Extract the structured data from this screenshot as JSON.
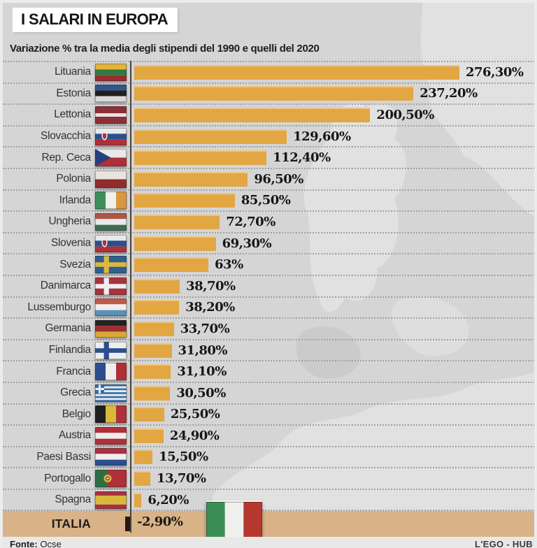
{
  "header": {
    "title": "I SALARI IN EUROPA",
    "subtitle": "Variazione % tra la media degli stipendi del 1990 e quelli del 2020"
  },
  "chart_data": {
    "type": "bar",
    "orientation": "horizontal",
    "unit": "%",
    "axis_min": 0,
    "max_value": 276.3,
    "grid": "dotted-row-separators",
    "categories": [
      "Lituania",
      "Estonia",
      "Lettonia",
      "Slovacchia",
      "Rep. Ceca",
      "Polonia",
      "Irlanda",
      "Ungheria",
      "Slovenia",
      "Svezia",
      "Danimarca",
      "Lussemburgo",
      "Germania",
      "Finlandia",
      "Francia",
      "Grecia",
      "Belgio",
      "Austria",
      "Paesi Bassi",
      "Portogallo",
      "Spagna",
      "ITALIA"
    ],
    "values": [
      276.3,
      237.2,
      200.5,
      129.6,
      112.4,
      96.5,
      85.5,
      72.7,
      69.3,
      63,
      38.7,
      38.2,
      33.7,
      31.8,
      31.1,
      30.5,
      25.5,
      24.9,
      15.5,
      13.7,
      6.2,
      -2.9
    ],
    "value_labels": [
      "276,30%",
      "237,20%",
      "200,50%",
      "129,60%",
      "112,40%",
      "96,50%",
      "85,50%",
      "72,70%",
      "69,30%",
      "63%",
      "38,70%",
      "38,20%",
      "33,70%",
      "31,80%",
      "31,10%",
      "30,50%",
      "25,50%",
      "24,90%",
      "15,50%",
      "13,70%",
      "6,20%",
      "-2,90%"
    ],
    "highlight_category": "ITALIA",
    "bar_color": "#e2a643",
    "negative_bar_color": "#241a10",
    "highlight_band_color": "#d9b287"
  },
  "flags": {
    "Lituania": {
      "type": "h",
      "colors": [
        "#e3b33c",
        "#2f7a3f",
        "#9b2b31"
      ]
    },
    "Estonia": {
      "type": "h",
      "colors": [
        "#33548e",
        "#1f1f22",
        "#d9d9d9"
      ]
    },
    "Lettonia": {
      "type": "h",
      "colors": [
        "#8c2f39",
        "#e8e3e0",
        "#8c2f39"
      ],
      "fractions": [
        0.4,
        0.2,
        0.4
      ]
    },
    "Slovacchia": {
      "type": "h",
      "colors": [
        "#e9e9e9",
        "#2b4f8e",
        "#b03038"
      ],
      "badge": "shield"
    },
    "Rep. Ceca": {
      "type": "cz",
      "white": "#e9e9e9",
      "red": "#ad2f38",
      "triangle": "#27407c"
    },
    "Polonia": {
      "type": "h",
      "colors": [
        "#e9e4dd",
        "#8f2d2d"
      ]
    },
    "Irlanda": {
      "type": "v",
      "colors": [
        "#3e8e5a",
        "#eef0ea",
        "#d9973f"
      ]
    },
    "Ungheria": {
      "type": "h",
      "colors": [
        "#b05544",
        "#e9e9e9",
        "#3c6e4f"
      ]
    },
    "Slovenia": {
      "type": "h",
      "colors": [
        "#e9e9e9",
        "#2b4f8e",
        "#b03038"
      ],
      "badge": "shield"
    },
    "Svezia": {
      "type": "cross",
      "bg": "#2f5f8e",
      "cross": "#ddb83c"
    },
    "Danimarca": {
      "type": "cross",
      "bg": "#a83240",
      "cross": "#eeeeee"
    },
    "Lussemburgo": {
      "type": "h",
      "colors": [
        "#c05a4a",
        "#eeeeee",
        "#5a8fb8"
      ]
    },
    "Germania": {
      "type": "h",
      "colors": [
        "#232323",
        "#a03030",
        "#d8a93a"
      ]
    },
    "Finlandia": {
      "type": "cross",
      "bg": "#eeeeee",
      "cross": "#2b4f8e"
    },
    "Francia": {
      "type": "v",
      "colors": [
        "#2b4f8e",
        "#eeeeee",
        "#b03038"
      ]
    },
    "Grecia": {
      "type": "gr",
      "blue": "#3a6ea5",
      "white": "#e8edf2"
    },
    "Belgio": {
      "type": "v",
      "colors": [
        "#1f1f1f",
        "#d8b93a",
        "#b03038"
      ]
    },
    "Austria": {
      "type": "h",
      "colors": [
        "#b03038",
        "#eeeeee",
        "#b03038"
      ]
    },
    "Paesi Bassi": {
      "type": "h",
      "colors": [
        "#a83240",
        "#eeeeee",
        "#2b4f8e"
      ]
    },
    "Portogallo": {
      "type": "pt",
      "green": "#2f6e45",
      "red": "#b03038",
      "badge": "#d8b93a"
    },
    "Spagna": {
      "type": "h",
      "colors": [
        "#a83240",
        "#d8b93a",
        "#a83240"
      ],
      "fractions": [
        0.25,
        0.5,
        0.25
      ]
    },
    "ITALIA": {
      "type": "v",
      "colors": [
        "#3a8e55",
        "#f0f0ee",
        "#b5382f"
      ]
    }
  },
  "footer": {
    "source_label": "Fonte:",
    "source_value": "Ocse",
    "credit": "L'EGO - HUB"
  }
}
